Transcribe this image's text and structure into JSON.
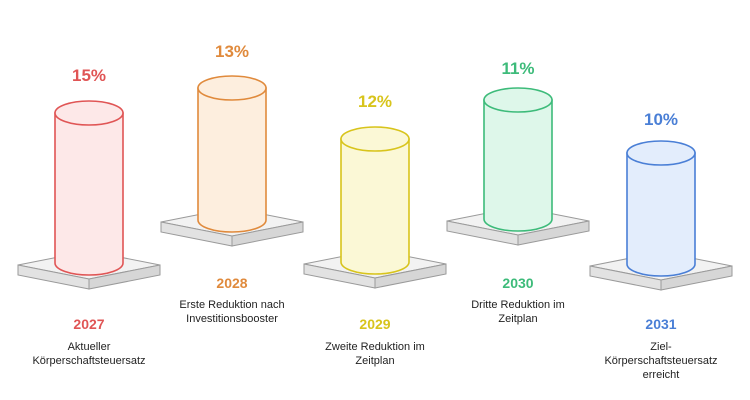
{
  "chart_data": {
    "type": "diagram",
    "items": [
      {
        "year": "2027",
        "percent": "15%",
        "label": "Aktueller Körperschaftsteuersatz",
        "color": "#e05555",
        "fill": "#fde8e8"
      },
      {
        "year": "2028",
        "percent": "13%",
        "label": "Erste Reduktion nach Investitionsbooster",
        "color": "#e08a3c",
        "fill": "#fdeede"
      },
      {
        "year": "2029",
        "percent": "12%",
        "label": "Zweite Reduktion im Zeitplan",
        "color": "#d8c41c",
        "fill": "#fbf8d6"
      },
      {
        "year": "2030",
        "percent": "11%",
        "label": "Dritte Reduktion im Zeitplan",
        "color": "#3dbb7a",
        "fill": "#def7ea"
      },
      {
        "year": "2031",
        "percent": "10%",
        "label": "Ziel-Körperschaftsteuersatz erreicht",
        "color": "#4a7fd6",
        "fill": "#e3edfc"
      }
    ]
  }
}
